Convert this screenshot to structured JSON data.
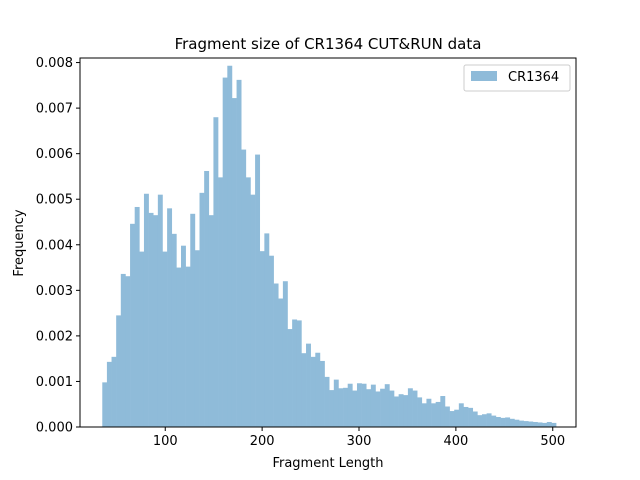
{
  "chart_data": {
    "type": "bar",
    "title": "Fragment size of CR1364 CUT&RUN data",
    "xlabel": "Fragment Length",
    "ylabel": "Frequency",
    "xlim": [
      12,
      524
    ],
    "ylim": [
      0,
      0.0081
    ],
    "x_ticks": [
      100,
      200,
      300,
      400,
      500
    ],
    "y_ticks": [
      0.0,
      0.001,
      0.002,
      0.003,
      0.004,
      0.005,
      0.006,
      0.007,
      0.008
    ],
    "y_tick_labels": [
      "0.000",
      "0.001",
      "0.002",
      "0.003",
      "0.004",
      "0.005",
      "0.006",
      "0.007",
      "0.008"
    ],
    "legend_position": "top-right",
    "grid": false,
    "series": [
      {
        "name": "CR1364",
        "color": "#8fbbd9",
        "bin_start": 35,
        "bin_width": 4.78,
        "values": [
          0.00098,
          0.00143,
          0.00154,
          0.00245,
          0.00336,
          0.00331,
          0.00446,
          0.00483,
          0.00385,
          0.00512,
          0.0047,
          0.00465,
          0.0051,
          0.00385,
          0.0048,
          0.00424,
          0.0035,
          0.00398,
          0.00352,
          0.00468,
          0.00388,
          0.00514,
          0.00562,
          0.00465,
          0.0068,
          0.00548,
          0.00767,
          0.00793,
          0.00722,
          0.00762,
          0.00609,
          0.00548,
          0.0051,
          0.00598,
          0.00386,
          0.00425,
          0.00376,
          0.00315,
          0.00282,
          0.0032,
          0.00215,
          0.00236,
          0.00234,
          0.00162,
          0.00183,
          0.00154,
          0.00163,
          0.00145,
          0.0011,
          0.00081,
          0.00104,
          0.00085,
          0.00086,
          0.00095,
          0.0008,
          0.00096,
          0.00095,
          0.00083,
          0.00093,
          0.00078,
          0.00084,
          0.00094,
          0.0008,
          0.00067,
          0.00072,
          0.0007,
          0.00085,
          0.0008,
          0.00065,
          0.00052,
          0.00062,
          0.00052,
          0.00055,
          0.00068,
          0.00045,
          0.00035,
          0.00038,
          0.00052,
          0.00044,
          0.00042,
          0.00034,
          0.00026,
          0.00028,
          0.0003,
          0.00025,
          0.00022,
          0.0002,
          0.00021,
          0.00018,
          0.00016,
          0.00014,
          0.00013,
          0.00012,
          0.00011,
          0.0001,
          9e-05,
          0.00011,
          9e-05
        ]
      }
    ]
  }
}
